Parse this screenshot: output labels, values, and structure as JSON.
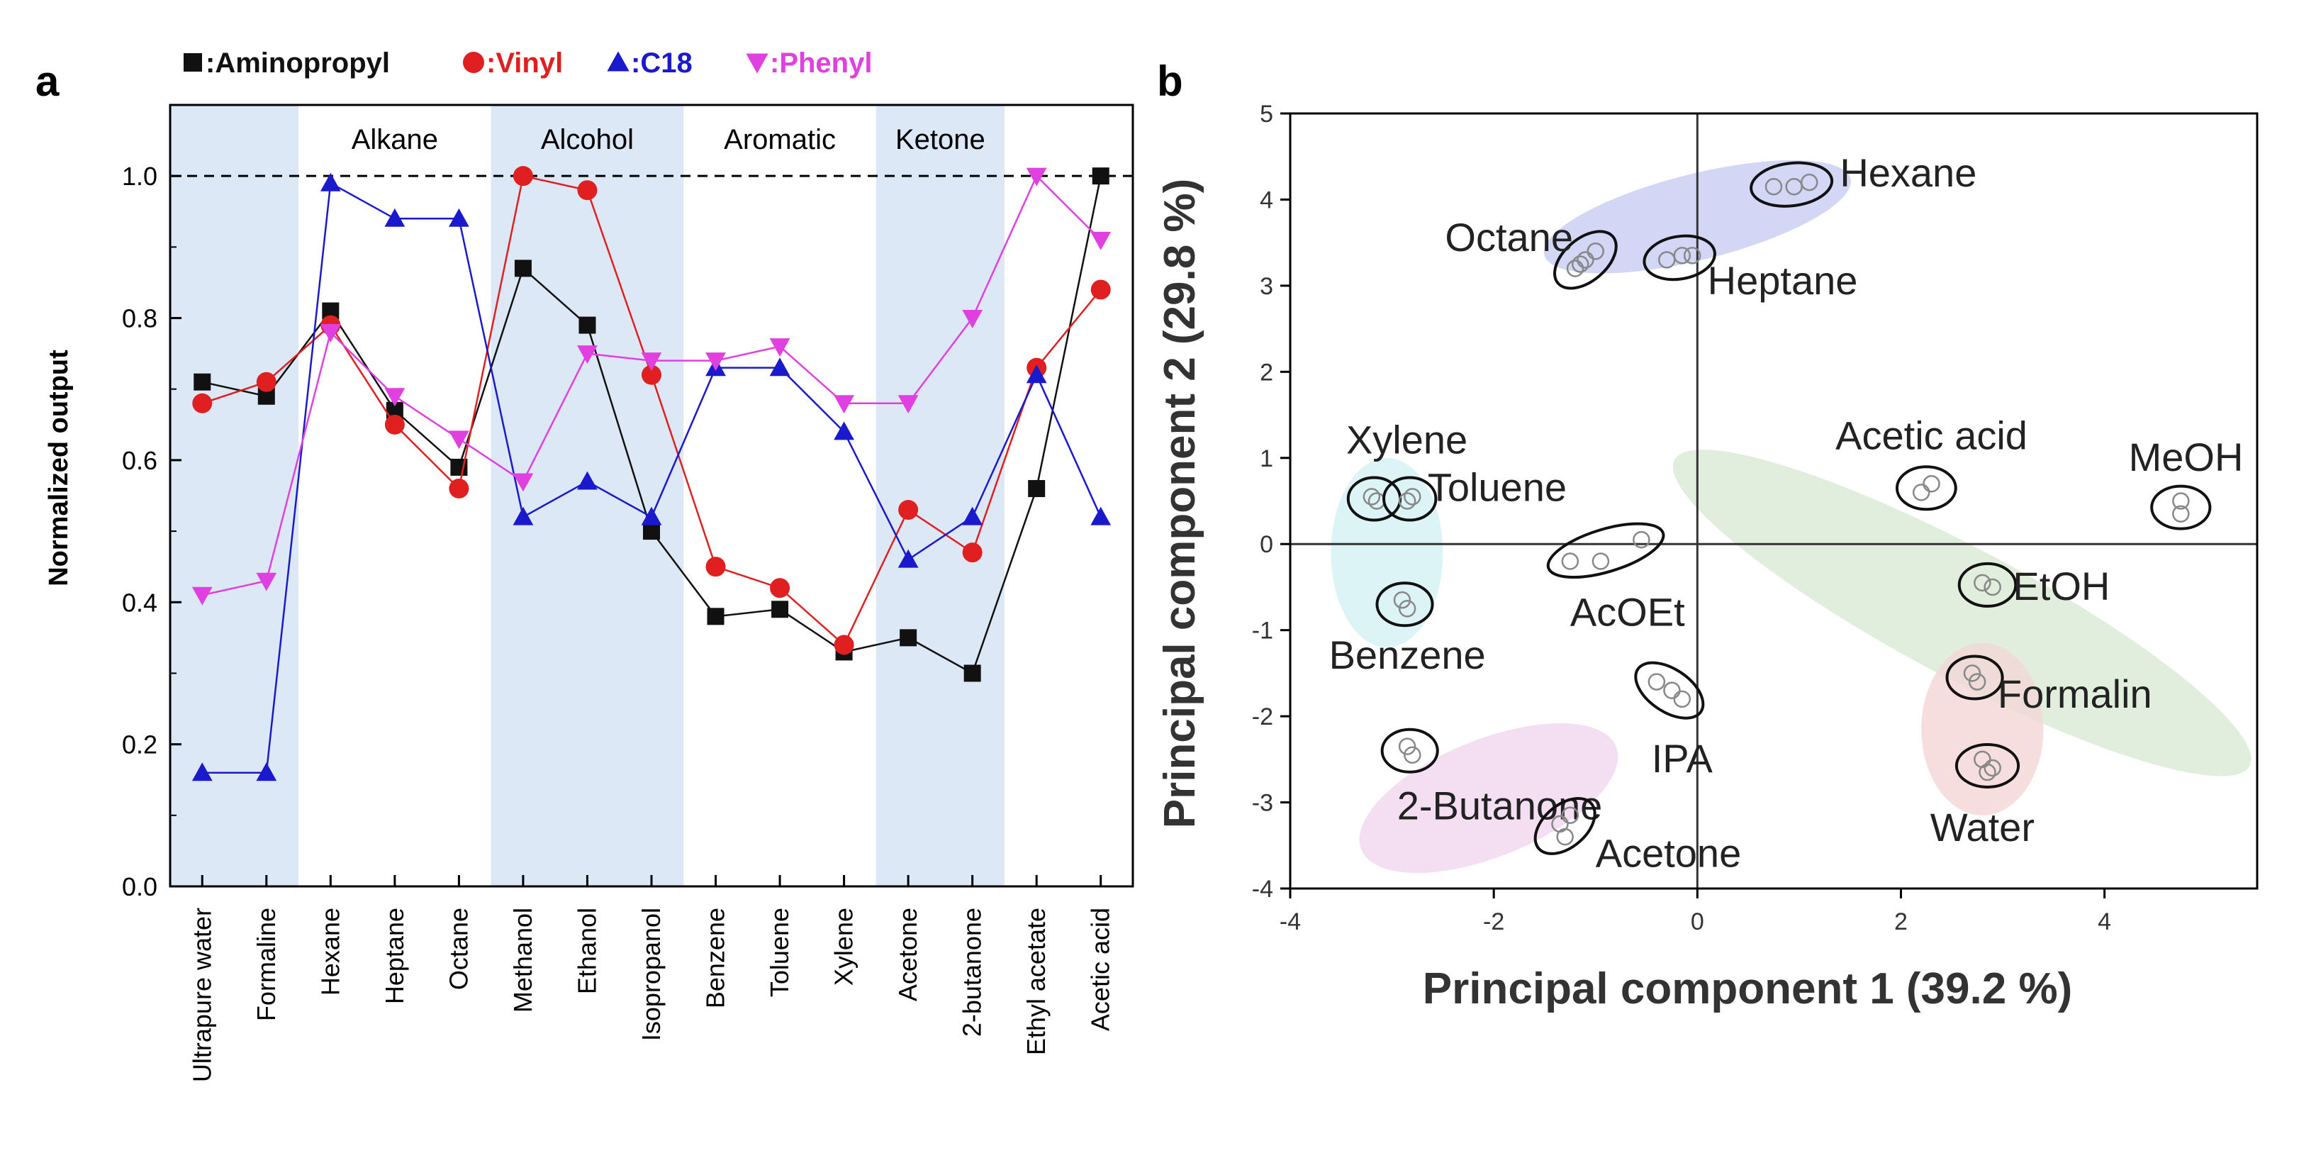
{
  "panel_a_label": "a",
  "panel_b_label": "b",
  "colors": {
    "aminopropyl": "#111111",
    "vinyl": "#e02020",
    "c18": "#1a1acc",
    "phenyl": "#e040e0",
    "band": "#dde8f6",
    "line": "#000000"
  },
  "chart_data": [
    {
      "panel": "a",
      "type": "line",
      "ylabel": "Normalized output",
      "xlabel": "",
      "ylim": [
        0.0,
        1.1
      ],
      "yticks": [
        "0.0",
        "0.2",
        "0.4",
        "0.6",
        "0.8",
        "1.0"
      ],
      "yticks_values": [
        0.0,
        0.2,
        0.4,
        0.6,
        0.8,
        1.0
      ],
      "reference_line": 1.0,
      "categories": [
        "Ultrapure water",
        "Formaline",
        "Hexane",
        "Heptane",
        "Octane",
        "Methanol",
        "Ethanol",
        "Isopropanol",
        "Benzene",
        "Toluene",
        "Xylene",
        "Acetone",
        "2-butanone",
        "Ethyl acetate",
        "Acetic acid"
      ],
      "groups": [
        {
          "label": "Alkane",
          "from": 2,
          "to": 4,
          "shaded": false
        },
        {
          "label": "Alcohol",
          "from": 5,
          "to": 7,
          "shaded": true
        },
        {
          "label": "Aromatic",
          "from": 8,
          "to": 10,
          "shaded": false
        },
        {
          "label": "Ketone",
          "from": 11,
          "to": 12,
          "shaded": true
        }
      ],
      "shaded_ranges": [
        [
          0,
          1
        ],
        [
          5,
          7
        ],
        [
          11,
          12
        ]
      ],
      "legend": [
        {
          "name": "Aminopropyl",
          "marker": "square",
          "text": ":Aminopropyl"
        },
        {
          "name": "Vinyl",
          "marker": "circle",
          "text": ":Vinyl"
        },
        {
          "name": "C18",
          "marker": "triangle-up",
          "text": ":C18"
        },
        {
          "name": "Phenyl",
          "marker": "triangle-down",
          "text": ":Phenyl"
        }
      ],
      "series": [
        {
          "name": "Aminopropyl",
          "marker": "square",
          "values": [
            0.71,
            0.69,
            0.81,
            0.67,
            0.59,
            0.87,
            0.79,
            0.5,
            0.38,
            0.39,
            0.33,
            0.35,
            0.3,
            0.56,
            1.0
          ]
        },
        {
          "name": "Vinyl",
          "marker": "circle",
          "values": [
            0.68,
            0.71,
            0.79,
            0.65,
            0.56,
            1.0,
            0.98,
            0.72,
            0.45,
            0.42,
            0.34,
            0.53,
            0.47,
            0.73,
            0.84
          ]
        },
        {
          "name": "C18",
          "marker": "triangle-up",
          "values": [
            0.16,
            0.16,
            0.99,
            0.94,
            0.94,
            0.52,
            0.57,
            0.52,
            0.73,
            0.73,
            0.64,
            0.46,
            0.52,
            0.72,
            0.52
          ]
        },
        {
          "name": "Phenyl",
          "marker": "triangle-down",
          "values": [
            0.41,
            0.43,
            0.78,
            0.69,
            0.63,
            0.57,
            0.75,
            0.74,
            0.74,
            0.76,
            0.68,
            0.68,
            0.8,
            1.0,
            0.91
          ]
        }
      ]
    },
    {
      "panel": "b",
      "type": "scatter",
      "xlabel": "Principal component 1 (39.2 %)",
      "ylabel": "Principal component 2 (29.8 %)",
      "xlim": [
        -4,
        5.5
      ],
      "ylim": [
        -4,
        5
      ],
      "xticks": [
        "-4",
        "-2",
        "0",
        "2",
        "4"
      ],
      "xticks_values": [
        -4,
        -2,
        0,
        2,
        4
      ],
      "yticks": [
        "-4",
        "-3",
        "-2",
        "-1",
        "0",
        "1",
        "2",
        "3",
        "4",
        "5"
      ],
      "yticks_values": [
        -4,
        -3,
        -2,
        -1,
        0,
        1,
        2,
        3,
        4,
        5
      ],
      "clusters": [
        {
          "name": "Hexane",
          "points": [
            [
              0.75,
              4.15
            ],
            [
              0.95,
              4.15
            ],
            [
              1.1,
              4.2
            ]
          ],
          "label_at": [
            1.4,
            4.3
          ],
          "label_anchor": "start"
        },
        {
          "name": "Octane",
          "points": [
            [
              -1.2,
              3.2
            ],
            [
              -1.1,
              3.3
            ],
            [
              -1.0,
              3.4
            ],
            [
              -1.15,
              3.25
            ]
          ],
          "label_at": [
            -1.85,
            3.55
          ],
          "label_anchor": "middle"
        },
        {
          "name": "Heptane",
          "points": [
            [
              -0.3,
              3.3
            ],
            [
              -0.15,
              3.35
            ],
            [
              -0.05,
              3.35
            ]
          ],
          "label_at": [
            0.1,
            3.05
          ],
          "label_anchor": "start"
        },
        {
          "name": "Xylene",
          "points": [
            [
              -3.2,
              0.55
            ],
            [
              -3.15,
              0.5
            ]
          ],
          "label_at": [
            -3.45,
            1.2
          ],
          "label_anchor": "start"
        },
        {
          "name": "Toluene",
          "points": [
            [
              -2.85,
              0.5
            ],
            [
              -2.8,
              0.55
            ]
          ],
          "label_at": [
            -2.65,
            0.65
          ],
          "label_anchor": "start"
        },
        {
          "name": "AcOEt",
          "points": [
            [
              -1.25,
              -0.2
            ],
            [
              -0.95,
              -0.2
            ],
            [
              -0.55,
              0.05
            ]
          ],
          "label_at": [
            -1.25,
            -0.8
          ],
          "label_anchor": "start"
        },
        {
          "name": "Benzene",
          "points": [
            [
              -2.9,
              -0.65
            ],
            [
              -2.85,
              -0.75
            ]
          ],
          "label_at": [
            -2.85,
            -1.3
          ],
          "label_anchor": "middle"
        },
        {
          "name": "Acetic acid",
          "points": [
            [
              2.2,
              0.6
            ],
            [
              2.3,
              0.7
            ]
          ],
          "label_at": [
            2.3,
            1.25
          ],
          "label_anchor": "middle"
        },
        {
          "name": "MeOH",
          "points": [
            [
              4.75,
              0.35
            ],
            [
              4.75,
              0.5
            ]
          ],
          "label_at": [
            4.8,
            1.0
          ],
          "label_anchor": "middle"
        },
        {
          "name": "EtOH",
          "points": [
            [
              2.8,
              -0.45
            ],
            [
              2.9,
              -0.5
            ]
          ],
          "label_at": [
            3.1,
            -0.5
          ],
          "label_anchor": "start"
        },
        {
          "name": "IPA",
          "points": [
            [
              -0.4,
              -1.6
            ],
            [
              -0.25,
              -1.7
            ],
            [
              -0.15,
              -1.8
            ]
          ],
          "label_at": [
            -0.15,
            -2.5
          ],
          "label_anchor": "middle"
        },
        {
          "name": "Formalin",
          "points": [
            [
              2.7,
              -1.5
            ],
            [
              2.75,
              -1.6
            ]
          ],
          "label_at": [
            2.95,
            -1.75
          ],
          "label_anchor": "start"
        },
        {
          "name": "2-Butanone",
          "points": [
            [
              -2.85,
              -2.35
            ],
            [
              -2.8,
              -2.45
            ]
          ],
          "label_at": [
            -2.95,
            -3.05
          ],
          "label_anchor": "start"
        },
        {
          "name": "Acetone",
          "points": [
            [
              -1.35,
              -3.25
            ],
            [
              -1.3,
              -3.4
            ],
            [
              -1.25,
              -3.15
            ]
          ],
          "label_at": [
            -1.0,
            -3.6
          ],
          "label_anchor": "start"
        },
        {
          "name": "Water",
          "points": [
            [
              2.8,
              -2.5
            ],
            [
              2.9,
              -2.6
            ],
            [
              2.85,
              -2.65
            ]
          ],
          "label_at": [
            2.8,
            -3.3
          ],
          "label_anchor": "middle"
        }
      ],
      "group_regions": [
        {
          "name": "alkane-region",
          "color": "#c8cdf2"
        },
        {
          "name": "alcohol-acid-region",
          "color": "#d9ead6"
        },
        {
          "name": "aromatic-region",
          "color": "#d5f1f4"
        },
        {
          "name": "ketone-region",
          "color": "#f1d6ef"
        },
        {
          "name": "water-region",
          "color": "#f3d6d4"
        }
      ]
    }
  ]
}
